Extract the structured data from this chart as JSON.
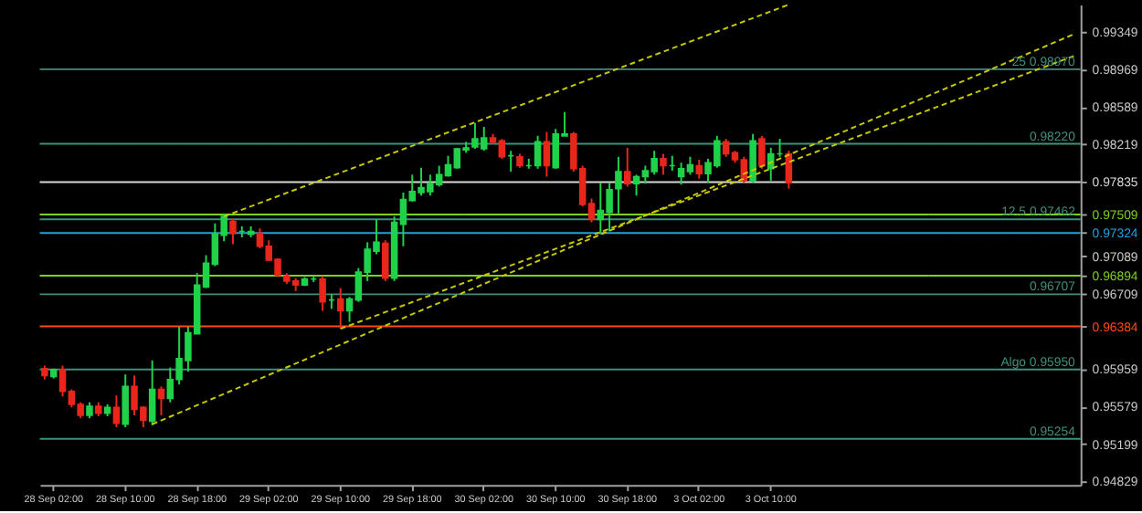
{
  "chart_data": {
    "type": "candlestick",
    "categories": [
      null,
      "28 Sep 02:00",
      null,
      null,
      null,
      null,
      null,
      null,
      null,
      "28 Sep 10:00",
      null,
      null,
      null,
      null,
      null,
      null,
      null,
      "28 Sep 18:00",
      null,
      null,
      null,
      null,
      null,
      null,
      null,
      "29 Sep 02:00",
      null,
      null,
      null,
      null,
      null,
      null,
      null,
      "29 Sep 10:00",
      null,
      null,
      null,
      null,
      null,
      null,
      null,
      "29 Sep 18:00",
      null,
      null,
      null,
      null,
      null,
      null,
      null,
      "30 Sep 02:00",
      null,
      null,
      null,
      null,
      null,
      null,
      null,
      "30 Sep 10:00",
      null,
      null,
      null,
      null,
      null,
      null,
      null,
      "30 Sep 18:00",
      null,
      null,
      null,
      null,
      null,
      null,
      null,
      "3 Oct 02:00",
      null,
      null,
      null,
      null,
      null,
      null,
      null,
      "3 Oct 10:00",
      null,
      null,
      null,
      null,
      null,
      null,
      null,
      null,
      null,
      null,
      null,
      null,
      null,
      null,
      null,
      null,
      null,
      null,
      null,
      null,
      null,
      null,
      null,
      null,
      null,
      null,
      null,
      null,
      null,
      null,
      null,
      null,
      null,
      null
    ],
    "ohlc": [
      [
        0.9596,
        0.9599,
        0.9585,
        0.9589
      ],
      [
        0.9588,
        0.9596,
        0.9586,
        0.9595
      ],
      [
        0.9595,
        0.9599,
        0.9568,
        0.9573
      ],
      [
        0.9573,
        0.9575,
        0.9557,
        0.956
      ],
      [
        0.956,
        0.9562,
        0.9546,
        0.9549
      ],
      [
        0.9549,
        0.9562,
        0.9546,
        0.9558
      ],
      [
        0.9558,
        0.9562,
        0.9548,
        0.9551
      ],
      [
        0.9551,
        0.956,
        0.9548,
        0.9557
      ],
      [
        0.9557,
        0.9569,
        0.9537,
        0.9541
      ],
      [
        0.954,
        0.959,
        0.9537,
        0.9578
      ],
      [
        0.9578,
        0.9589,
        0.9549,
        0.9555
      ],
      [
        0.9557,
        0.9558,
        0.9537,
        0.9544
      ],
      [
        0.9543,
        0.9604,
        0.9539,
        0.9575
      ],
      [
        0.9575,
        0.9578,
        0.9549,
        0.9566
      ],
      [
        0.9566,
        0.9597,
        0.9562,
        0.9585
      ],
      [
        0.9585,
        0.9638,
        0.958,
        0.9606
      ],
      [
        0.9604,
        0.9638,
        0.9593,
        0.9632
      ],
      [
        0.9631,
        0.9692,
        0.9631,
        0.968
      ],
      [
        0.9678,
        0.971,
        0.9677,
        0.9702
      ],
      [
        0.9701,
        0.9742,
        0.9699,
        0.9731
      ],
      [
        0.973,
        0.9752,
        0.9724,
        0.9749
      ],
      [
        0.9744,
        0.9747,
        0.9721,
        0.9732
      ],
      [
        0.9734,
        0.9739,
        0.9728,
        0.9734
      ],
      [
        0.9731,
        0.9739,
        0.9728,
        0.9734
      ],
      [
        0.9732,
        0.9737,
        0.9717,
        0.9719
      ],
      [
        0.9719,
        0.9725,
        0.9704,
        0.9705
      ],
      [
        0.9706,
        0.9707,
        0.9688,
        0.969
      ],
      [
        0.9689,
        0.9692,
        0.9681,
        0.9684
      ],
      [
        0.9684,
        0.9687,
        0.9674,
        0.968
      ],
      [
        0.968,
        0.9688,
        0.9679,
        0.9686
      ],
      [
        0.9686,
        0.9689,
        0.9683,
        0.9686
      ],
      [
        0.9686,
        0.9689,
        0.9654,
        0.9663
      ],
      [
        0.9665,
        0.9671,
        0.9656,
        0.9665
      ],
      [
        0.9666,
        0.9677,
        0.9636,
        0.9654
      ],
      [
        0.9654,
        0.9668,
        0.9643,
        0.9666
      ],
      [
        0.9665,
        0.9697,
        0.9663,
        0.9693
      ],
      [
        0.9693,
        0.9723,
        0.9684,
        0.9716
      ],
      [
        0.9714,
        0.9746,
        0.9711,
        0.9723
      ],
      [
        0.9722,
        0.9725,
        0.9684,
        0.9687
      ],
      [
        0.9687,
        0.9749,
        0.9684,
        0.9743
      ],
      [
        0.9741,
        0.9773,
        0.9719,
        0.9766
      ],
      [
        0.9765,
        0.9791,
        0.9764,
        0.9774
      ],
      [
        0.9773,
        0.9798,
        0.977,
        0.9778
      ],
      [
        0.9774,
        0.9791,
        0.977,
        0.9782
      ],
      [
        0.9781,
        0.98,
        0.9779,
        0.9791
      ],
      [
        0.979,
        0.981,
        0.9789,
        0.9801
      ],
      [
        0.9798,
        0.9818,
        0.9797,
        0.9817
      ],
      [
        0.9816,
        0.9824,
        0.9813,
        0.9818
      ],
      [
        0.9819,
        0.9843,
        0.9817,
        0.9827
      ],
      [
        0.9817,
        0.9839,
        0.9815,
        0.9828
      ],
      [
        0.9828,
        0.9832,
        0.9822,
        0.9824
      ],
      [
        0.9825,
        0.9827,
        0.9807,
        0.9809
      ],
      [
        0.981,
        0.9815,
        0.9794,
        0.981
      ],
      [
        0.9809,
        0.9812,
        0.9798,
        0.98
      ],
      [
        0.98,
        0.9807,
        0.9797,
        0.98
      ],
      [
        0.98,
        0.983,
        0.9797,
        0.9824
      ],
      [
        0.9824,
        0.9834,
        0.9789,
        0.98
      ],
      [
        0.9798,
        0.9837,
        0.9797,
        0.9832
      ],
      [
        0.983,
        0.9854,
        0.983,
        0.9832
      ],
      [
        0.9832,
        0.9834,
        0.9794,
        0.9797
      ],
      [
        0.9797,
        0.98,
        0.9759,
        0.9761
      ],
      [
        0.9762,
        0.9767,
        0.9743,
        0.9746
      ],
      [
        0.9746,
        0.9783,
        0.9731,
        0.9755
      ],
      [
        0.9753,
        0.9783,
        0.9734,
        0.9776
      ],
      [
        0.9777,
        0.9809,
        0.9752,
        0.9794
      ],
      [
        0.9794,
        0.9818,
        0.9779,
        0.9782
      ],
      [
        0.9782,
        0.9791,
        0.977,
        0.9789
      ],
      [
        0.9789,
        0.98,
        0.9782,
        0.9795
      ],
      [
        0.9794,
        0.9815,
        0.9791,
        0.9807
      ],
      [
        0.9807,
        0.9812,
        0.9791,
        0.98
      ],
      [
        0.98,
        0.981,
        0.9795,
        0.98
      ],
      [
        0.9789,
        0.9803,
        0.9781,
        0.9797
      ],
      [
        0.9794,
        0.9809,
        0.9791,
        0.9801
      ],
      [
        0.98,
        0.9806,
        0.9787,
        0.9792
      ],
      [
        0.9792,
        0.9807,
        0.9783,
        0.9803
      ],
      [
        0.98,
        0.983,
        0.9798,
        0.9825
      ],
      [
        0.9824,
        0.9827,
        0.9809,
        0.9812
      ],
      [
        0.9813,
        0.9815,
        0.9803,
        0.9806
      ],
      [
        0.9806,
        0.9809,
        0.9783,
        0.9785
      ],
      [
        0.9785,
        0.9832,
        0.9783,
        0.9825
      ],
      [
        0.9827,
        0.983,
        0.9797,
        0.98
      ],
      [
        0.9797,
        0.9818,
        0.9785,
        0.9812
      ],
      [
        0.9812,
        0.9827,
        0.9809,
        0.9812
      ],
      [
        0.9812,
        0.9815,
        0.9777,
        0.9783
      ],
      null,
      null,
      null,
      null,
      null,
      null,
      null,
      null,
      null,
      null,
      null,
      null,
      null,
      null,
      null,
      null,
      null,
      null,
      null,
      null,
      null,
      null,
      null,
      null,
      null,
      null,
      null,
      null,
      null,
      null,
      null,
      null
    ],
    "colors": [
      "#e8261b",
      "#1fd24a",
      "#e8261b",
      "#e8261b",
      "#e8261b",
      "#1fd24a",
      "#e8261b",
      "#1fd24a",
      "#e8261b",
      "#1fd24a",
      "#e8261b",
      "#e8261b",
      "#1fd24a",
      "#e8261b",
      "#1fd24a",
      "#1fd24a",
      "#1fd24a",
      "#1fd24a",
      "#1fd24a",
      "#1fd24a",
      "#1fd24a",
      "#e8261b",
      "#1fd24a",
      "#1fd24a",
      "#e8261b",
      "#e8261b",
      "#e8261b",
      "#e8261b",
      "#e8261b",
      "#1fd24a",
      "#1fd24a",
      "#e8261b",
      "#1fd24a",
      "#e8261b",
      "#1fd24a",
      "#1fd24a",
      "#1fd24a",
      "#1fd24a",
      "#e8261b",
      "#1fd24a",
      "#1fd24a",
      "#1fd24a",
      "#1fd24a",
      "#1fd24a",
      "#1fd24a",
      "#1fd24a",
      "#1fd24a",
      "#1fd24a",
      "#1fd24a",
      "#1fd24a",
      "#e8261b",
      "#e8261b",
      "#1fd24a",
      "#e8261b",
      "#1fd24a",
      "#1fd24a",
      "#e8261b",
      "#1fd24a",
      "#1fd24a",
      "#e8261b",
      "#e8261b",
      "#e8261b",
      "#1fd24a",
      "#1fd24a",
      "#1fd24a",
      "#e8261b",
      "#1fd24a",
      "#1fd24a",
      "#1fd24a",
      "#e8261b",
      "#1fd24a",
      "#1fd24a",
      "#1fd24a",
      "#e8261b",
      "#1fd24a",
      "#1fd24a",
      "#e8261b",
      "#e8261b",
      "#e8261b",
      "#1fd24a",
      "#e8261b",
      "#1fd24a",
      "#1fd24a",
      "#e8261b",
      null,
      null,
      null,
      null,
      null,
      null,
      null,
      null,
      null,
      null,
      null,
      null,
      null,
      null,
      null,
      null,
      null,
      null,
      null,
      null,
      null,
      null,
      null,
      null,
      null,
      null,
      null,
      null,
      null,
      null,
      null,
      null
    ],
    "series": [
      {
        "type": "line",
        "color": "#c8c800",
        "line_style": "dashed",
        "values": [
          null,
          null,
          null,
          null,
          null,
          null,
          null,
          null,
          null,
          null,
          null,
          null,
          null,
          null,
          null,
          null,
          null,
          null,
          null,
          null,
          0.9749,
          null,
          null,
          null,
          null,
          null,
          null,
          null,
          null,
          null,
          null,
          null,
          null,
          null,
          null,
          null,
          null,
          null,
          null,
          null,
          null,
          null,
          null,
          null,
          null,
          null,
          null,
          null,
          null,
          null,
          null,
          null,
          null,
          null,
          null,
          null,
          null,
          null,
          null,
          null,
          null,
          null,
          null,
          null,
          null,
          null,
          null,
          null,
          null,
          null,
          null,
          null,
          null,
          null,
          null,
          null,
          null,
          null,
          null,
          null,
          null,
          null,
          null,
          0.9962,
          null,
          null,
          null,
          null,
          null,
          null,
          null,
          null,
          null,
          null,
          null,
          null,
          null,
          null,
          null,
          null,
          null,
          null,
          null,
          null,
          null,
          null,
          null,
          null,
          null,
          null,
          null,
          null,
          null,
          null,
          null,
          null
        ]
      },
      {
        "type": "line",
        "color": "#c8c800",
        "line_style": "dashed",
        "values": [
          null,
          null,
          null,
          null,
          null,
          null,
          null,
          null,
          null,
          null,
          null,
          null,
          0.954,
          null,
          null,
          null,
          null,
          null,
          null,
          null,
          null,
          null,
          null,
          null,
          null,
          null,
          null,
          null,
          null,
          null,
          null,
          null,
          null,
          null,
          null,
          null,
          null,
          null,
          null,
          null,
          null,
          null,
          null,
          null,
          null,
          null,
          null,
          null,
          null,
          null,
          null,
          null,
          null,
          null,
          null,
          null,
          null,
          null,
          null,
          null,
          null,
          null,
          null,
          null,
          null,
          null,
          null,
          null,
          null,
          null,
          null,
          null,
          null,
          null,
          null,
          null,
          null,
          null,
          null,
          null,
          null,
          null,
          null,
          null,
          null,
          null,
          null,
          null,
          null,
          null,
          null,
          null,
          null,
          null,
          null,
          null,
          null,
          null,
          null,
          null,
          null,
          null,
          null,
          null,
          null,
          null,
          null,
          null,
          null,
          null,
          null,
          null,
          null,
          null,
          null,
          0.9933
        ]
      },
      {
        "type": "line",
        "color": "#c8c800",
        "line_style": "dashed",
        "values": [
          null,
          null,
          null,
          null,
          null,
          null,
          null,
          null,
          null,
          null,
          null,
          null,
          null,
          null,
          null,
          null,
          null,
          null,
          null,
          null,
          null,
          null,
          null,
          null,
          null,
          null,
          null,
          null,
          null,
          null,
          null,
          null,
          null,
          0.9636,
          null,
          null,
          null,
          null,
          null,
          null,
          null,
          null,
          null,
          null,
          null,
          null,
          null,
          null,
          null,
          null,
          null,
          null,
          null,
          null,
          null,
          null,
          null,
          null,
          null,
          null,
          null,
          null,
          null,
          null,
          null,
          null,
          null,
          null,
          null,
          null,
          null,
          null,
          null,
          null,
          null,
          null,
          null,
          null,
          null,
          null,
          null,
          null,
          null,
          null,
          null,
          null,
          null,
          null,
          null,
          null,
          null,
          null,
          null,
          null,
          null,
          null,
          null,
          null,
          null,
          null,
          null,
          null,
          null,
          null,
          null,
          null,
          null,
          null,
          null,
          null,
          null,
          null,
          null,
          null,
          null,
          0.9911
        ]
      }
    ],
    "ylim": [
      0.9479,
      0.9962
    ],
    "yticks": [
      0.94829,
      0.95199,
      0.95579,
      0.95959,
      0.96384,
      0.96709,
      0.96894,
      0.97089,
      0.97324,
      0.97509,
      0.97835,
      0.98219,
      0.98589,
      0.98969,
      0.99349
    ],
    "ref_lines": [
      {
        "axis": "y",
        "value": 0.9897,
        "label": "25  0.98970",
        "color": "#3f8f7c"
      },
      {
        "axis": "y",
        "value": 0.9822,
        "label": "0.98220",
        "color": "#3f8f7c"
      },
      {
        "axis": "y",
        "value": 0.97835,
        "color": "#d8d8d8"
      },
      {
        "axis": "y",
        "value": 0.97509,
        "color": "#7fd11a"
      },
      {
        "axis": "y",
        "value": 0.97462,
        "label": "12.5  0.97462",
        "color": "#3f8f7c"
      },
      {
        "axis": "y",
        "value": 0.97324,
        "color": "#1fa3e0"
      },
      {
        "axis": "y",
        "value": 0.96894,
        "color": "#7fd11a"
      },
      {
        "axis": "y",
        "value": 0.96707,
        "label": "0.96707",
        "color": "#3f8f7c"
      },
      {
        "axis": "y",
        "value": 0.96384,
        "color": "#ff4a14"
      },
      {
        "axis": "y",
        "value": 0.9595,
        "label": "Algo  0.95950",
        "color": "#3f8f7c"
      },
      {
        "axis": "y",
        "value": 0.95254,
        "label": "0.95254",
        "color": "#3f8f7c"
      }
    ]
  }
}
